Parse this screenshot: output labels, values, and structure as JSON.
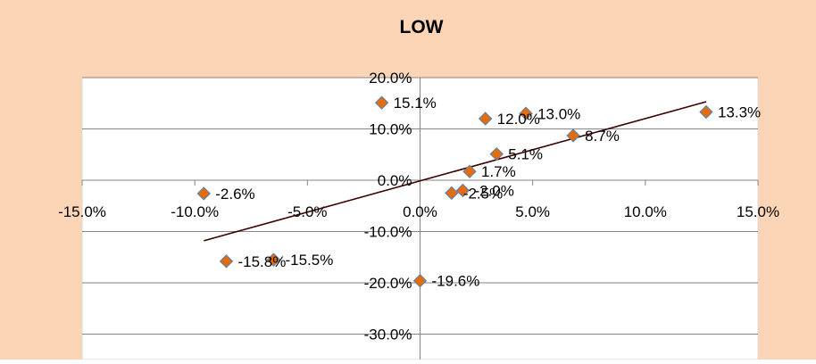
{
  "chart_data": {
    "type": "scatter",
    "title": "LOW",
    "xlabel": "",
    "ylabel": "",
    "xlim": [
      -15,
      15
    ],
    "ylim": [
      -30,
      20
    ],
    "x_ticks": [
      -15,
      -10,
      -5,
      0,
      5,
      10,
      15
    ],
    "y_ticks": [
      -30,
      -20,
      -10,
      0,
      10,
      20
    ],
    "x_tick_labels": [
      "-15.0%",
      "-10.0%",
      "-5.0%",
      "0.0%",
      "5.0%",
      "10.0%",
      "15.0%"
    ],
    "y_tick_labels": [
      "-30.0%",
      "-20.0%",
      "-10.0%",
      "0.0%",
      "10.0%",
      "20.0%"
    ],
    "grid": {
      "horizontal": true,
      "vertical": false
    },
    "legend": "none",
    "points": [
      {
        "x": -1.7,
        "y": 15.1,
        "label": "15.1%"
      },
      {
        "x": 2.9,
        "y": 12.0,
        "label": "12.0%"
      },
      {
        "x": 4.7,
        "y": 13.0,
        "label": "13.0%"
      },
      {
        "x": 12.7,
        "y": 13.3,
        "label": "13.3%"
      },
      {
        "x": 6.8,
        "y": 8.7,
        "label": "8.7%"
      },
      {
        "x": 3.4,
        "y": 5.1,
        "label": "5.1%"
      },
      {
        "x": 2.2,
        "y": 1.7,
        "label": "1.7%"
      },
      {
        "x": -9.6,
        "y": -2.6,
        "label": "-2.6%"
      },
      {
        "x": 1.4,
        "y": -2.5,
        "label": "-2.5%"
      },
      {
        "x": 1.9,
        "y": -2.0,
        "label": "-2.0%"
      },
      {
        "x": -8.6,
        "y": -15.8,
        "label": "-15.8%"
      },
      {
        "x": -6.5,
        "y": -15.5,
        "label": "-15.5%"
      },
      {
        "x": 0.0,
        "y": -19.6,
        "label": "-19.6%"
      }
    ],
    "trendline": {
      "x": [
        -9.6,
        12.7
      ],
      "y": [
        -11.8,
        15.3
      ]
    },
    "colors": {
      "background": "#fbd5b5",
      "plot_area": "#ffffff",
      "marker_fill": "#e46c0a",
      "marker_stroke": "#4f81bd",
      "trendline": "#3b0000",
      "gridline": "#868686",
      "axis": "#868686",
      "text": "#000000"
    }
  }
}
